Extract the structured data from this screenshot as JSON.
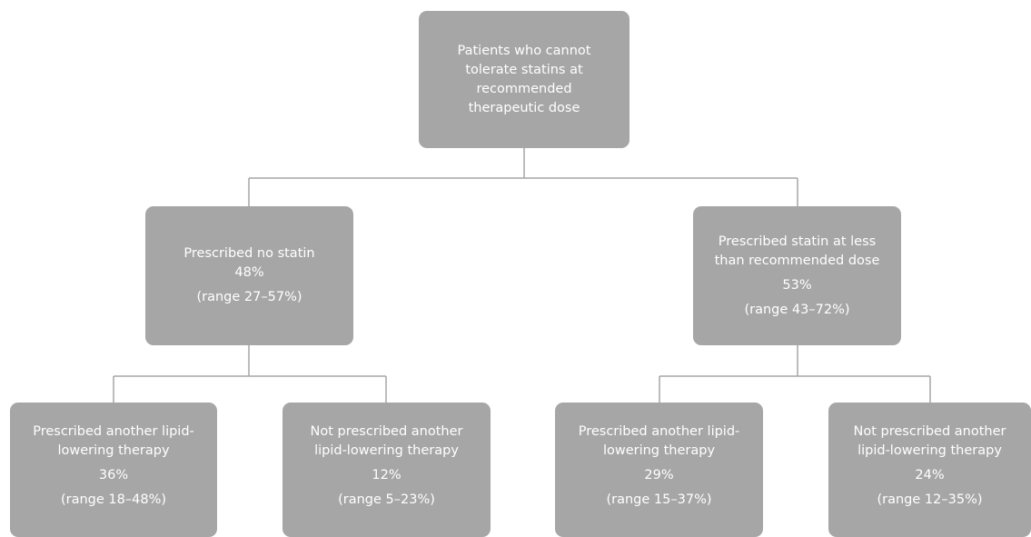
{
  "root": {
    "lines": [
      "Patients who cannot",
      "tolerate statins at",
      "recommended",
      "therapeutic dose"
    ]
  },
  "no_statin": {
    "title": "Prescribed no statin",
    "percent": "48%",
    "range": "(range 27–57%)"
  },
  "low_statin": {
    "title_line1": "Prescribed statin at less",
    "title_line2": "than recommended dose",
    "percent": "53%",
    "range": "(range 43–72%)"
  },
  "no_statin_other": {
    "title_line1": "Prescribed another lipid-",
    "title_line2": "lowering therapy",
    "percent": "36%",
    "range": "(range 18–48%)"
  },
  "no_statin_none": {
    "title_line1": "Not prescribed another",
    "title_line2": "lipid-lowering therapy",
    "percent": "12%",
    "range": "(range 5–23%)"
  },
  "low_statin_other": {
    "title_line1": "Prescribed another lipid-",
    "title_line2": "lowering therapy",
    "percent": "29%",
    "range": "(range 15–37%)"
  },
  "low_statin_none": {
    "title_line1": "Not prescribed another",
    "title_line2": "lipid-lowering therapy",
    "percent": "24%",
    "range": "(range 12–35%)"
  },
  "colors": {
    "node_fill": "#a6a6a6",
    "node_text": "#ffffff",
    "connector": "#a6a6a6"
  }
}
